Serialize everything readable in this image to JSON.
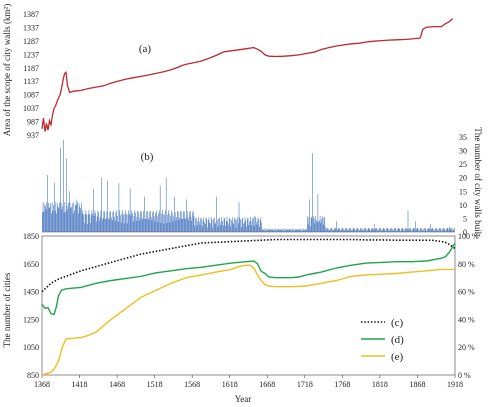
{
  "chart_data": [
    {
      "panel": "a",
      "type": "line",
      "panel_label": "(a)",
      "ylabel": "Area of the scope of city walls (km²)",
      "xlim": [
        1368,
        1918
      ],
      "ylim": [
        937,
        1387
      ],
      "yticks": [
        937,
        987,
        1037,
        1087,
        1137,
        1187,
        1237,
        1287,
        1337,
        1387
      ],
      "color": "#c0282d",
      "series": [
        {
          "x": [
            1368,
            1370,
            1372,
            1374,
            1376,
            1378,
            1380,
            1382,
            1384,
            1386,
            1388,
            1390,
            1392,
            1394,
            1396,
            1398,
            1400,
            1402,
            1405,
            1410,
            1420,
            1430,
            1440,
            1450,
            1460,
            1470,
            1480,
            1490,
            1500,
            1510,
            1520,
            1530,
            1540,
            1550,
            1555,
            1560,
            1570,
            1580,
            1590,
            1600,
            1610,
            1620,
            1630,
            1640,
            1645,
            1650,
            1655,
            1660,
            1665,
            1670,
            1680,
            1690,
            1700,
            1710,
            1720,
            1730,
            1740,
            1750,
            1760,
            1770,
            1780,
            1790,
            1800,
            1810,
            1820,
            1830,
            1840,
            1850,
            1860,
            1865,
            1870,
            1872,
            1875,
            1880,
            1890,
            1900,
            1905,
            1910,
            1915
          ],
          "y": [
            960,
            1000,
            950,
            980,
            955,
            990,
            975,
            1010,
            1035,
            1045,
            1060,
            1075,
            1085,
            1110,
            1140,
            1165,
            1170,
            1120,
            1095,
            1100,
            1103,
            1110,
            1115,
            1120,
            1130,
            1138,
            1145,
            1150,
            1155,
            1160,
            1166,
            1172,
            1180,
            1190,
            1196,
            1200,
            1206,
            1212,
            1222,
            1233,
            1246,
            1250,
            1254,
            1258,
            1260,
            1262,
            1256,
            1248,
            1235,
            1230,
            1229,
            1230,
            1232,
            1235,
            1240,
            1245,
            1255,
            1262,
            1268,
            1272,
            1276,
            1278,
            1283,
            1286,
            1288,
            1290,
            1291,
            1292,
            1294,
            1296,
            1296,
            1300,
            1330,
            1338,
            1340,
            1340,
            1350,
            1358,
            1370
          ]
        }
      ]
    },
    {
      "panel": "b",
      "type": "bar",
      "panel_label": "(b)",
      "ylabel": "The number of city walls built",
      "xlim": [
        1368,
        1918
      ],
      "ylim": [
        0,
        35
      ],
      "yticks": [
        0,
        5,
        10,
        15,
        20,
        25,
        30,
        35
      ],
      "color": "#4a78c2",
      "peaks": [
        {
          "x": 1375,
          "y": 21
        },
        {
          "x": 1384,
          "y": 18
        },
        {
          "x": 1392,
          "y": 31
        },
        {
          "x": 1396,
          "y": 34
        },
        {
          "x": 1400,
          "y": 27
        },
        {
          "x": 1404,
          "y": 15
        },
        {
          "x": 1414,
          "y": 12
        },
        {
          "x": 1436,
          "y": 16
        },
        {
          "x": 1447,
          "y": 20
        },
        {
          "x": 1455,
          "y": 19
        },
        {
          "x": 1470,
          "y": 18
        },
        {
          "x": 1485,
          "y": 16
        },
        {
          "x": 1504,
          "y": 13
        },
        {
          "x": 1525,
          "y": 17
        },
        {
          "x": 1533,
          "y": 20
        },
        {
          "x": 1544,
          "y": 13
        },
        {
          "x": 1560,
          "y": 12
        },
        {
          "x": 1600,
          "y": 13
        },
        {
          "x": 1630,
          "y": 11
        },
        {
          "x": 1651,
          "y": 6
        },
        {
          "x": 1724,
          "y": 12
        },
        {
          "x": 1728,
          "y": 29
        },
        {
          "x": 1735,
          "y": 14
        },
        {
          "x": 1760,
          "y": 4
        },
        {
          "x": 1810,
          "y": 3
        },
        {
          "x": 1855,
          "y": 8
        },
        {
          "x": 1865,
          "y": 4
        },
        {
          "x": 1885,
          "y": 3
        },
        {
          "x": 1910,
          "y": 2
        }
      ]
    },
    {
      "panel": "cde",
      "type": "line",
      "xlabel": "Year",
      "ylabel": "The number of cities",
      "xlim": [
        1368,
        1918
      ],
      "xticks": [
        1368,
        1418,
        1468,
        1518,
        1568,
        1618,
        1668,
        1718,
        1768,
        1818,
        1868,
        1918
      ],
      "ylim": [
        850,
        1850
      ],
      "yticks": [
        850,
        1050,
        1250,
        1450,
        1650,
        1850
      ],
      "y2lim": [
        0,
        100
      ],
      "y2ticks": [
        "0 %",
        "20 %",
        "40 %",
        "60 %",
        "80 %",
        "100 %"
      ],
      "series": [
        {
          "name": "(c)",
          "color": "#111111",
          "style": "dotted",
          "axis": "left",
          "x": [
            1368,
            1380,
            1390,
            1400,
            1410,
            1420,
            1440,
            1460,
            1480,
            1500,
            1520,
            1540,
            1560,
            1580,
            1600,
            1620,
            1640,
            1660,
            1680,
            1700,
            1720,
            1740,
            1760,
            1780,
            1800,
            1820,
            1840,
            1860,
            1880,
            1890,
            1900,
            1905,
            1910,
            1918
          ],
          "y": [
            1450,
            1510,
            1540,
            1560,
            1580,
            1600,
            1630,
            1660,
            1690,
            1720,
            1740,
            1760,
            1780,
            1800,
            1805,
            1810,
            1815,
            1820,
            1825,
            1825,
            1825,
            1825,
            1825,
            1825,
            1822,
            1822,
            1820,
            1820,
            1820,
            1818,
            1810,
            1805,
            1790,
            1760
          ]
        },
        {
          "name": "(d)",
          "color": "#1fa64a",
          "style": "solid",
          "axis": "left",
          "x": [
            1368,
            1372,
            1376,
            1380,
            1384,
            1387,
            1390,
            1394,
            1400,
            1410,
            1420,
            1440,
            1460,
            1480,
            1500,
            1520,
            1540,
            1560,
            1580,
            1600,
            1620,
            1640,
            1650,
            1655,
            1660,
            1665,
            1670,
            1680,
            1700,
            1710,
            1720,
            1730,
            1740,
            1760,
            1770,
            1780,
            1800,
            1820,
            1840,
            1860,
            1880,
            1890,
            1900,
            1905,
            1910,
            1918
          ],
          "y": [
            1360,
            1330,
            1335,
            1290,
            1285,
            1340,
            1420,
            1460,
            1470,
            1475,
            1480,
            1510,
            1530,
            1545,
            1560,
            1585,
            1600,
            1615,
            1625,
            1640,
            1655,
            1665,
            1670,
            1650,
            1595,
            1580,
            1555,
            1550,
            1550,
            1555,
            1570,
            1580,
            1590,
            1620,
            1630,
            1640,
            1655,
            1660,
            1665,
            1665,
            1670,
            1680,
            1690,
            1700,
            1730,
            1800
          ]
        },
        {
          "name": "(e)",
          "color": "#f2bd1d",
          "style": "solid",
          "axis": "right",
          "x": [
            1368,
            1380,
            1385,
            1390,
            1395,
            1400,
            1410,
            1420,
            1430,
            1440,
            1460,
            1480,
            1500,
            1520,
            1540,
            1560,
            1580,
            1600,
            1620,
            1630,
            1640,
            1645,
            1650,
            1655,
            1660,
            1665,
            1670,
            1680,
            1700,
            1720,
            1730,
            1740,
            1760,
            1780,
            1800,
            1820,
            1840,
            1860,
            1880,
            1900,
            1910,
            1918
          ],
          "y": [
            0,
            2,
            5,
            10,
            20,
            26,
            26.5,
            27,
            28.5,
            31,
            40,
            48,
            56,
            61,
            66,
            70,
            72,
            74,
            76,
            78,
            79,
            79,
            77,
            72,
            68,
            65,
            64,
            63.5,
            63.5,
            64,
            65,
            66,
            68,
            71,
            72,
            72.5,
            73,
            74,
            75,
            76,
            76,
            76
          ]
        }
      ]
    }
  ]
}
